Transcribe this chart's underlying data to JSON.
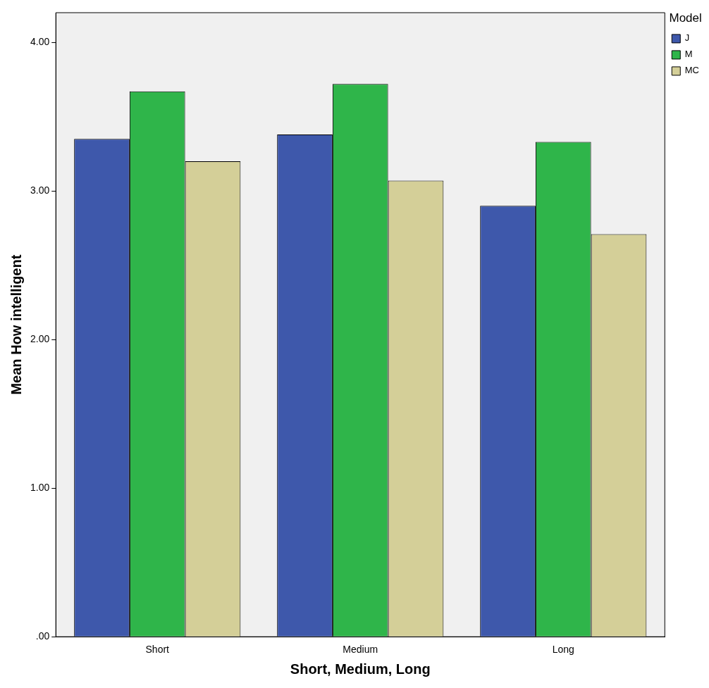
{
  "chart_data": {
    "type": "bar",
    "xlabel": "Short, Medium, Long",
    "ylabel": "Mean How intelligent",
    "legend_title": "Model",
    "categories": [
      "Short",
      "Medium",
      "Long"
    ],
    "series": [
      {
        "name": "J",
        "color": "#3e58ab",
        "values": [
          3.35,
          3.38,
          2.9
        ]
      },
      {
        "name": "M",
        "color": "#2fb54a",
        "values": [
          3.67,
          3.72,
          3.33
        ]
      },
      {
        "name": "MC",
        "color": "#d4cf98",
        "values": [
          3.2,
          3.07,
          2.71
        ]
      }
    ],
    "ylim": [
      0,
      4.2
    ],
    "yticks": [
      {
        "value": 0,
        "label": ".00"
      },
      {
        "value": 1,
        "label": "1.00"
      },
      {
        "value": 2,
        "label": "2.00"
      },
      {
        "value": 3,
        "label": "3.00"
      },
      {
        "value": 4,
        "label": "4.00"
      }
    ],
    "grid": false,
    "legend": "top right"
  }
}
